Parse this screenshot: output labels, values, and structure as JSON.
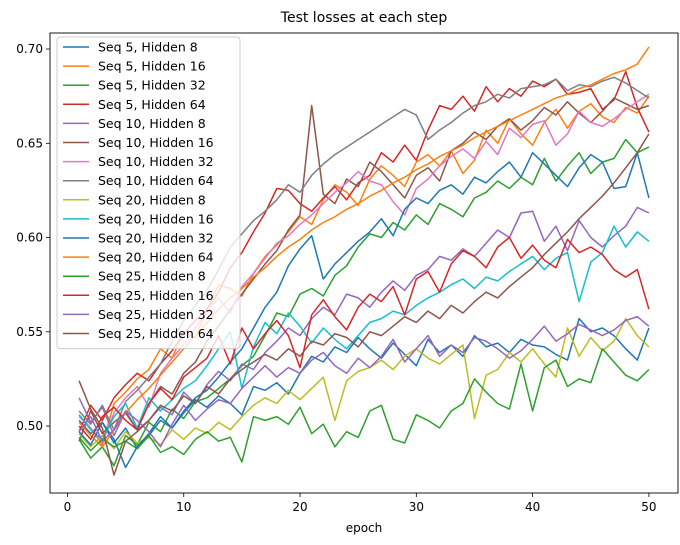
{
  "chart_data": {
    "type": "line",
    "title": "Test losses at each step",
    "xlabel": "epoch",
    "ylabel": "",
    "xlim": [
      -1.5,
      52.5
    ],
    "ylim": [
      0.4645,
      0.7085
    ],
    "xticks": [
      0,
      10,
      20,
      30,
      40,
      50
    ],
    "yticks": [
      0.5,
      0.55,
      0.6,
      0.65,
      0.7
    ],
    "ytick_labels": [
      "0.50",
      "0.55",
      "0.60",
      "0.65",
      "0.70"
    ],
    "grid": false,
    "legend": "upper-left",
    "x": [
      1,
      2,
      3,
      4,
      5,
      6,
      7,
      8,
      9,
      10,
      11,
      12,
      13,
      14,
      15,
      16,
      17,
      18,
      19,
      20,
      21,
      22,
      23,
      24,
      25,
      26,
      27,
      28,
      29,
      30,
      31,
      32,
      33,
      34,
      35,
      36,
      37,
      38,
      39,
      40,
      41,
      42,
      43,
      44,
      45,
      46,
      47,
      48,
      49,
      50
    ],
    "series": [
      {
        "name": "Seq 5, Hidden 8",
        "color": "#1f77b4",
        "values": [
          0.503,
          0.496,
          0.502,
          0.491,
          0.499,
          0.488,
          0.495,
          0.503,
          0.499,
          0.507,
          0.514,
          0.51,
          0.516,
          0.512,
          0.506,
          0.521,
          0.519,
          0.523,
          0.517,
          0.528,
          0.537,
          0.534,
          0.542,
          0.539,
          0.547,
          0.541,
          0.536,
          0.544,
          0.538,
          0.532,
          0.546,
          0.539,
          0.543,
          0.537,
          0.548,
          0.542,
          0.544,
          0.539,
          0.546,
          0.543,
          0.542,
          0.538,
          0.535,
          0.557,
          0.55,
          0.552,
          0.548,
          0.541,
          0.535,
          0.552
        ]
      },
      {
        "name": "Seq 5, Hidden 16",
        "color": "#ff7f0e",
        "values": [
          0.506,
          0.499,
          0.49,
          0.512,
          0.518,
          0.525,
          0.53,
          0.541,
          0.536,
          0.55,
          0.547,
          0.562,
          0.575,
          0.573,
          0.569,
          0.581,
          0.59,
          0.596,
          0.603,
          0.611,
          0.607,
          0.62,
          0.628,
          0.624,
          0.617,
          0.631,
          0.638,
          0.633,
          0.627,
          0.64,
          0.644,
          0.638,
          0.646,
          0.634,
          0.641,
          0.657,
          0.65,
          0.663,
          0.655,
          0.649,
          0.661,
          0.668,
          0.658,
          0.667,
          0.671,
          0.664,
          0.661,
          0.669,
          0.666,
          0.675
        ]
      },
      {
        "name": "Seq 5, Hidden 32",
        "color": "#2ca02c",
        "values": [
          0.493,
          0.483,
          0.489,
          0.479,
          0.495,
          0.49,
          0.502,
          0.497,
          0.509,
          0.504,
          0.513,
          0.515,
          0.52,
          0.525,
          0.532,
          0.537,
          0.548,
          0.56,
          0.558,
          0.57,
          0.573,
          0.569,
          0.58,
          0.585,
          0.595,
          0.602,
          0.6,
          0.608,
          0.604,
          0.612,
          0.607,
          0.618,
          0.615,
          0.611,
          0.621,
          0.624,
          0.63,
          0.626,
          0.632,
          0.628,
          0.642,
          0.63,
          0.638,
          0.645,
          0.634,
          0.64,
          0.642,
          0.652,
          0.645,
          0.648
        ]
      },
      {
        "name": "Seq 5, Hidden 64",
        "color": "#d62728",
        "values": [
          0.497,
          0.511,
          0.503,
          0.515,
          0.522,
          0.528,
          0.524,
          0.533,
          0.54,
          0.549,
          0.556,
          0.562,
          0.571,
          0.584,
          0.592,
          0.603,
          0.613,
          0.626,
          0.625,
          0.618,
          0.614,
          0.621,
          0.627,
          0.62,
          0.629,
          0.633,
          0.645,
          0.64,
          0.649,
          0.641,
          0.657,
          0.67,
          0.668,
          0.675,
          0.667,
          0.68,
          0.672,
          0.679,
          0.675,
          0.683,
          0.68,
          0.684,
          0.676,
          0.677,
          0.679,
          0.668,
          0.673,
          0.688,
          0.669,
          0.656
        ]
      },
      {
        "name": "Seq 10, Hidden 8",
        "color": "#9467bd",
        "values": [
          0.515,
          0.502,
          0.51,
          0.495,
          0.508,
          0.498,
          0.503,
          0.51,
          0.506,
          0.518,
          0.512,
          0.522,
          0.529,
          0.524,
          0.533,
          0.53,
          0.539,
          0.545,
          0.552,
          0.548,
          0.557,
          0.563,
          0.559,
          0.57,
          0.568,
          0.563,
          0.571,
          0.577,
          0.572,
          0.58,
          0.583,
          0.59,
          0.588,
          0.594,
          0.59,
          0.597,
          0.604,
          0.6,
          0.613,
          0.614,
          0.598,
          0.606,
          0.593,
          0.609,
          0.6,
          0.595,
          0.601,
          0.606,
          0.616,
          0.613
        ]
      },
      {
        "name": "Seq 10, Hidden 16",
        "color": "#8c564b",
        "values": [
          0.492,
          0.508,
          0.496,
          0.502,
          0.507,
          0.498,
          0.512,
          0.521,
          0.517,
          0.528,
          0.534,
          0.545,
          0.553,
          0.562,
          0.57,
          0.578,
          0.586,
          0.593,
          0.604,
          0.612,
          0.67,
          0.623,
          0.618,
          0.631,
          0.627,
          0.64,
          0.635,
          0.628,
          0.621,
          0.633,
          0.637,
          0.63,
          0.646,
          0.65,
          0.656,
          0.652,
          0.659,
          0.663,
          0.657,
          0.662,
          0.669,
          0.665,
          0.672,
          0.666,
          0.661,
          0.667,
          0.674,
          0.671,
          0.668,
          0.67
        ]
      },
      {
        "name": "Seq 10, Hidden 32",
        "color": "#e377c2",
        "values": [
          0.505,
          0.499,
          0.491,
          0.507,
          0.515,
          0.521,
          0.51,
          0.528,
          0.536,
          0.543,
          0.552,
          0.561,
          0.568,
          0.56,
          0.574,
          0.581,
          0.589,
          0.597,
          0.601,
          0.607,
          0.612,
          0.618,
          0.624,
          0.629,
          0.635,
          0.63,
          0.628,
          0.619,
          0.612,
          0.626,
          0.631,
          0.638,
          0.643,
          0.647,
          0.642,
          0.651,
          0.644,
          0.658,
          0.653,
          0.66,
          0.662,
          0.649,
          0.655,
          0.667,
          0.661,
          0.659,
          0.663,
          0.668,
          0.672,
          0.676
        ]
      },
      {
        "name": "Seq 10, Hidden 64",
        "color": "#7f7f7f",
        "values": [
          0.508,
          0.501,
          0.511,
          0.498,
          0.513,
          0.519,
          0.526,
          0.533,
          0.545,
          0.556,
          0.564,
          0.572,
          0.583,
          0.595,
          0.602,
          0.609,
          0.614,
          0.62,
          0.628,
          0.624,
          0.633,
          0.639,
          0.644,
          0.648,
          0.652,
          0.656,
          0.66,
          0.664,
          0.668,
          0.665,
          0.652,
          0.657,
          0.661,
          0.666,
          0.67,
          0.672,
          0.676,
          0.674,
          0.679,
          0.68,
          0.681,
          0.684,
          0.678,
          0.681,
          0.68,
          0.683,
          0.685,
          0.682,
          0.678,
          0.674
        ]
      },
      {
        "name": "Seq 20, Hidden 8",
        "color": "#bcbd22",
        "values": [
          0.496,
          0.489,
          0.495,
          0.488,
          0.497,
          0.491,
          0.494,
          0.49,
          0.498,
          0.493,
          0.499,
          0.496,
          0.502,
          0.498,
          0.505,
          0.511,
          0.515,
          0.512,
          0.519,
          0.514,
          0.52,
          0.526,
          0.503,
          0.524,
          0.529,
          0.531,
          0.535,
          0.53,
          0.537,
          0.541,
          0.536,
          0.533,
          0.538,
          0.543,
          0.504,
          0.527,
          0.53,
          0.539,
          0.534,
          0.541,
          0.533,
          0.526,
          0.552,
          0.537,
          0.547,
          0.54,
          0.545,
          0.557,
          0.548,
          0.542
        ]
      },
      {
        "name": "Seq 20, Hidden 16",
        "color": "#17becf",
        "values": [
          0.506,
          0.498,
          0.493,
          0.505,
          0.512,
          0.499,
          0.515,
          0.508,
          0.514,
          0.52,
          0.524,
          0.532,
          0.541,
          0.55,
          0.52,
          0.542,
          0.555,
          0.549,
          0.56,
          0.553,
          0.544,
          0.552,
          0.546,
          0.541,
          0.548,
          0.555,
          0.557,
          0.561,
          0.559,
          0.564,
          0.568,
          0.571,
          0.575,
          0.578,
          0.573,
          0.579,
          0.577,
          0.582,
          0.586,
          0.59,
          0.583,
          0.589,
          0.592,
          0.566,
          0.587,
          0.592,
          0.606,
          0.595,
          0.603,
          0.598
        ]
      },
      {
        "name": "Seq 20, Hidden 32",
        "color": "#1f77b4",
        "values": [
          0.497,
          0.49,
          0.502,
          0.493,
          0.478,
          0.489,
          0.496,
          0.505,
          0.499,
          0.508,
          0.515,
          0.519,
          0.526,
          0.534,
          0.541,
          0.552,
          0.563,
          0.571,
          0.585,
          0.594,
          0.601,
          0.578,
          0.586,
          0.592,
          0.598,
          0.603,
          0.61,
          0.601,
          0.615,
          0.621,
          0.618,
          0.625,
          0.628,
          0.623,
          0.632,
          0.629,
          0.635,
          0.64,
          0.632,
          0.645,
          0.639,
          0.633,
          0.627,
          0.637,
          0.644,
          0.64,
          0.626,
          0.627,
          0.645,
          0.621
        ]
      },
      {
        "name": "Seq 20, Hidden 64",
        "color": "#ff7f0e",
        "values": [
          0.502,
          0.495,
          0.489,
          0.498,
          0.507,
          0.514,
          0.52,
          0.527,
          0.534,
          0.541,
          0.548,
          0.555,
          0.562,
          0.568,
          0.573,
          0.579,
          0.584,
          0.59,
          0.595,
          0.599,
          0.604,
          0.608,
          0.611,
          0.615,
          0.618,
          0.622,
          0.625,
          0.629,
          0.632,
          0.636,
          0.639,
          0.643,
          0.646,
          0.649,
          0.653,
          0.656,
          0.659,
          0.662,
          0.665,
          0.668,
          0.671,
          0.674,
          0.676,
          0.679,
          0.681,
          0.684,
          0.687,
          0.689,
          0.692,
          0.701
        ]
      },
      {
        "name": "Seq 25, Hidden 8",
        "color": "#2ca02c",
        "values": [
          0.494,
          0.487,
          0.493,
          0.489,
          0.492,
          0.488,
          0.495,
          0.486,
          0.489,
          0.485,
          0.493,
          0.497,
          0.492,
          0.494,
          0.481,
          0.505,
          0.503,
          0.505,
          0.501,
          0.51,
          0.496,
          0.501,
          0.489,
          0.497,
          0.494,
          0.508,
          0.511,
          0.493,
          0.491,
          0.506,
          0.503,
          0.499,
          0.508,
          0.512,
          0.525,
          0.518,
          0.512,
          0.509,
          0.533,
          0.508,
          0.531,
          0.535,
          0.521,
          0.525,
          0.523,
          0.541,
          0.534,
          0.527,
          0.524,
          0.53
        ]
      },
      {
        "name": "Seq 25, Hidden 16",
        "color": "#d62728",
        "values": [
          0.5,
          0.493,
          0.505,
          0.51,
          0.503,
          0.498,
          0.512,
          0.52,
          0.514,
          0.526,
          0.531,
          0.536,
          0.548,
          0.533,
          0.552,
          0.541,
          0.549,
          0.556,
          0.548,
          0.531,
          0.559,
          0.567,
          0.558,
          0.551,
          0.563,
          0.57,
          0.566,
          0.574,
          0.559,
          0.578,
          0.582,
          0.571,
          0.586,
          0.593,
          0.59,
          0.584,
          0.595,
          0.6,
          0.589,
          0.596,
          0.588,
          0.584,
          0.599,
          0.592,
          0.595,
          0.591,
          0.583,
          0.579,
          0.583,
          0.562
        ]
      },
      {
        "name": "Seq 25, Hidden 32",
        "color": "#9467bd",
        "values": [
          0.497,
          0.505,
          0.492,
          0.498,
          0.508,
          0.503,
          0.497,
          0.489,
          0.501,
          0.511,
          0.503,
          0.509,
          0.514,
          0.512,
          0.52,
          0.526,
          0.532,
          0.526,
          0.531,
          0.528,
          0.535,
          0.539,
          0.532,
          0.528,
          0.536,
          0.531,
          0.537,
          0.546,
          0.534,
          0.541,
          0.548,
          0.537,
          0.543,
          0.539,
          0.547,
          0.545,
          0.541,
          0.536,
          0.54,
          0.546,
          0.553,
          0.545,
          0.549,
          0.554,
          0.551,
          0.548,
          0.551,
          0.556,
          0.558,
          0.553
        ]
      },
      {
        "name": "Seq 25, Hidden 64",
        "color": "#8c564b",
        "values": [
          0.524,
          0.509,
          0.499,
          0.474,
          0.492,
          0.497,
          0.503,
          0.511,
          0.508,
          0.516,
          0.512,
          0.521,
          0.517,
          0.525,
          0.53,
          0.534,
          0.538,
          0.535,
          0.541,
          0.537,
          0.545,
          0.543,
          0.549,
          0.547,
          0.542,
          0.55,
          0.548,
          0.553,
          0.558,
          0.555,
          0.561,
          0.557,
          0.564,
          0.56,
          0.566,
          0.571,
          0.568,
          0.574,
          0.579,
          0.584,
          0.591,
          0.597,
          0.603,
          0.61,
          0.616,
          0.622,
          0.629,
          0.637,
          0.645,
          0.655
        ]
      }
    ]
  }
}
